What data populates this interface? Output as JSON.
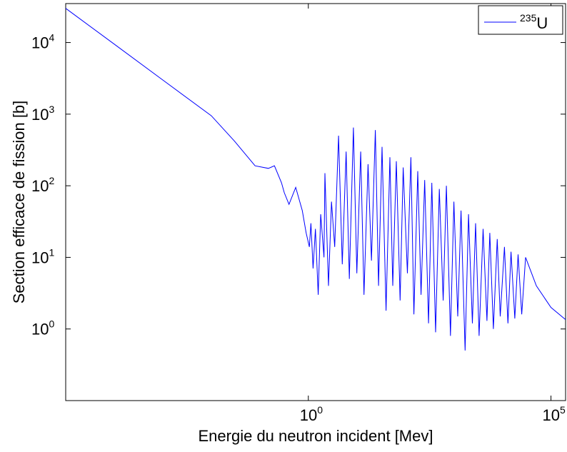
{
  "colors": {
    "series": "#0000ff",
    "axes": "#000000",
    "background": "#ffffff"
  },
  "chart_data": {
    "type": "line",
    "title": "",
    "xlabel": "Energie du neutron incident [Mev]",
    "ylabel": "Section efficace de fission [b]",
    "x_scale": "log",
    "y_scale": "log",
    "xlim": [
      1e-05,
      200000
    ],
    "ylim": [
      0.1,
      35000
    ],
    "grid": false,
    "legend_position": "top-right",
    "x_ticks": [
      {
        "value": 1,
        "base": "10",
        "exp": "0"
      },
      {
        "value": 100000,
        "base": "10",
        "exp": "5"
      }
    ],
    "y_ticks": [
      {
        "value": 1,
        "base": "10",
        "exp": "0"
      },
      {
        "value": 10,
        "base": "10",
        "exp": "1"
      },
      {
        "value": 100,
        "base": "10",
        "exp": "2"
      },
      {
        "value": 1000,
        "base": "10",
        "exp": "3"
      },
      {
        "value": 10000,
        "base": "10",
        "exp": "4"
      }
    ],
    "series": [
      {
        "name_sup": "235",
        "name_main": "U",
        "x": [
          1e-05,
          0.0001,
          0.001,
          0.01,
          0.03,
          0.08,
          0.15,
          0.2,
          0.28,
          0.32,
          0.4,
          0.55,
          0.75,
          0.9,
          1.05,
          1.13,
          1.25,
          1.4,
          1.6,
          1.8,
          2.1,
          2.2,
          2.6,
          3.0,
          3.5,
          4.2,
          5,
          6,
          7,
          8.5,
          10,
          12,
          14,
          17,
          20,
          24,
          28,
          33,
          40,
          48,
          55,
          65,
          78,
          90,
          110,
          130,
          150,
          180,
          210,
          250,
          300,
          350,
          420,
          500,
          600,
          700,
          850,
          1000,
          1200,
          1400,
          1700,
          2000,
          2400,
          2800,
          3300,
          4000,
          4800,
          5500,
          6500,
          7800,
          9000,
          11000,
          13000,
          15000,
          18000,
          21000,
          25000,
          30000,
          50000,
          100000,
          200000
        ],
        "y": [
          30000,
          9500,
          3000,
          950,
          420,
          190,
          175,
          190,
          110,
          80,
          55,
          95,
          45,
          22,
          14,
          30,
          7,
          25,
          3,
          40,
          10,
          150,
          4,
          60,
          14,
          500,
          8,
          300,
          5,
          650,
          6,
          300,
          3,
          200,
          9,
          600,
          4,
          350,
          1.8,
          250,
          4,
          220,
          2.5,
          180,
          6,
          250,
          1.6,
          160,
          3,
          120,
          1.2,
          110,
          0.9,
          90,
          2.5,
          100,
          0.8,
          60,
          1.5,
          45,
          0.5,
          40,
          1.2,
          30,
          0.8,
          25,
          1.3,
          22,
          1,
          18,
          1.5,
          14,
          1.2,
          12,
          1.4,
          11,
          1.6,
          10,
          4,
          2,
          1.35
        ]
      }
    ]
  }
}
